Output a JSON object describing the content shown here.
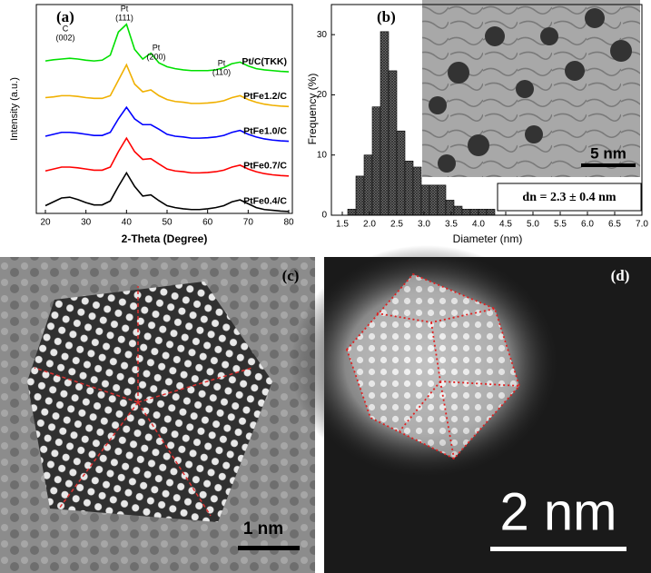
{
  "chart_data": [
    {
      "type": "line",
      "panel_label": "(a)",
      "x_label": "2-Theta (Degree)",
      "y_label": "Intensity (a.u.)",
      "x": [
        20,
        22,
        24,
        26,
        28,
        30,
        32,
        34,
        36,
        38,
        40,
        42,
        44,
        46,
        48,
        50,
        52,
        54,
        56,
        58,
        60,
        62,
        64,
        66,
        68,
        70,
        72,
        74,
        76,
        78,
        80
      ],
      "xlim": [
        20,
        80
      ],
      "xticks": [
        20,
        30,
        40,
        50,
        60,
        70,
        80
      ],
      "ylim": [
        0,
        5.2
      ],
      "annotations": [
        {
          "label": "C",
          "hkl": "(002)"
        },
        {
          "label": "Pt",
          "hkl": "(111)"
        },
        {
          "label": "Pt",
          "hkl": "(200)"
        },
        {
          "label": "Pt",
          "hkl": "(110)"
        }
      ],
      "series": [
        {
          "name": "PtFe0.4/C",
          "color": "#000000",
          "values": [
            0.2,
            0.3,
            0.4,
            0.42,
            0.36,
            0.28,
            0.22,
            0.22,
            0.32,
            0.7,
            1.05,
            0.7,
            0.45,
            0.48,
            0.33,
            0.2,
            0.15,
            0.12,
            0.1,
            0.1,
            0.12,
            0.15,
            0.2,
            0.3,
            0.35,
            0.25,
            0.15,
            0.1,
            0.08,
            0.06,
            0.05
          ]
        },
        {
          "name": "PtFe0.7/C",
          "color": "#ff0000",
          "values": [
            1.1,
            1.15,
            1.2,
            1.2,
            1.18,
            1.15,
            1.12,
            1.12,
            1.2,
            1.6,
            1.95,
            1.6,
            1.4,
            1.42,
            1.28,
            1.15,
            1.1,
            1.08,
            1.05,
            1.05,
            1.06,
            1.08,
            1.12,
            1.2,
            1.25,
            1.15,
            1.08,
            1.03,
            1.0,
            0.98,
            0.97
          ]
        },
        {
          "name": "PtFe1.0/C",
          "color": "#0000ff",
          "values": [
            2.0,
            2.05,
            2.1,
            2.1,
            2.08,
            2.05,
            2.02,
            2.02,
            2.1,
            2.45,
            2.75,
            2.45,
            2.3,
            2.3,
            2.18,
            2.05,
            2.0,
            1.98,
            1.95,
            1.95,
            1.96,
            1.98,
            2.02,
            2.1,
            2.15,
            2.05,
            1.98,
            1.93,
            1.9,
            1.88,
            1.87
          ]
        },
        {
          "name": "PtFe1.2/C",
          "color": "#f0b000",
          "values": [
            3.0,
            3.02,
            3.05,
            3.05,
            3.03,
            3.0,
            2.98,
            2.98,
            3.05,
            3.45,
            3.85,
            3.35,
            3.15,
            3.2,
            3.05,
            2.95,
            2.9,
            2.88,
            2.85,
            2.85,
            2.86,
            2.88,
            2.92,
            3.0,
            3.05,
            2.95,
            2.88,
            2.83,
            2.8,
            2.78,
            2.77
          ]
        },
        {
          "name": "Pt/C(TKK)",
          "color": "#00e000",
          "values": [
            3.95,
            3.98,
            4.0,
            4.02,
            4.0,
            3.97,
            3.95,
            3.97,
            4.1,
            4.7,
            4.9,
            4.25,
            4.0,
            4.15,
            3.9,
            3.8,
            3.75,
            3.72,
            3.7,
            3.7,
            3.7,
            3.72,
            3.78,
            3.88,
            3.92,
            3.82,
            3.75,
            3.72,
            3.7,
            3.68,
            3.67
          ]
        }
      ]
    },
    {
      "type": "histogram",
      "panel_label": "(b)",
      "x_label": "Diameter (nm)",
      "y_label": "Frequency (%)",
      "bins": [
        1.6,
        1.75,
        1.9,
        2.05,
        2.2,
        2.35,
        2.5,
        2.65,
        2.8,
        2.95,
        3.1,
        3.25,
        3.4,
        3.55,
        3.7,
        3.85,
        4.0,
        4.15,
        4.3
      ],
      "values": [
        1,
        6.5,
        10,
        18,
        30.5,
        24,
        14,
        9,
        8,
        5,
        5,
        5,
        2.5,
        1.5,
        1,
        1,
        1,
        1
      ],
      "color": "#555555",
      "xlim": [
        1.5,
        7.0
      ],
      "xticks": [
        1.5,
        {
          "value": 2,
          "label": "2.0"
        },
        2.5,
        {
          "value": 3,
          "label": "3.0"
        },
        3.5,
        {
          "value": 4,
          "label": "4.0"
        },
        4.5,
        {
          "value": 5,
          "label": "5.0"
        },
        5.5,
        {
          "value": 6,
          "label": "6.0"
        },
        6.5,
        {
          "value": 7,
          "label": "7.0"
        }
      ],
      "ylim": [
        0,
        35
      ],
      "yticks": [
        0,
        10,
        20,
        30
      ],
      "annotation": "dn = 2.3 ± 0.4 nm",
      "inset_scale_bar": "5 nm"
    }
  ],
  "images": [
    {
      "panel_label": "(c)",
      "scale_bar": "1 nm"
    },
    {
      "panel_label": "(d)",
      "scale_bar": "2 nm"
    }
  ]
}
